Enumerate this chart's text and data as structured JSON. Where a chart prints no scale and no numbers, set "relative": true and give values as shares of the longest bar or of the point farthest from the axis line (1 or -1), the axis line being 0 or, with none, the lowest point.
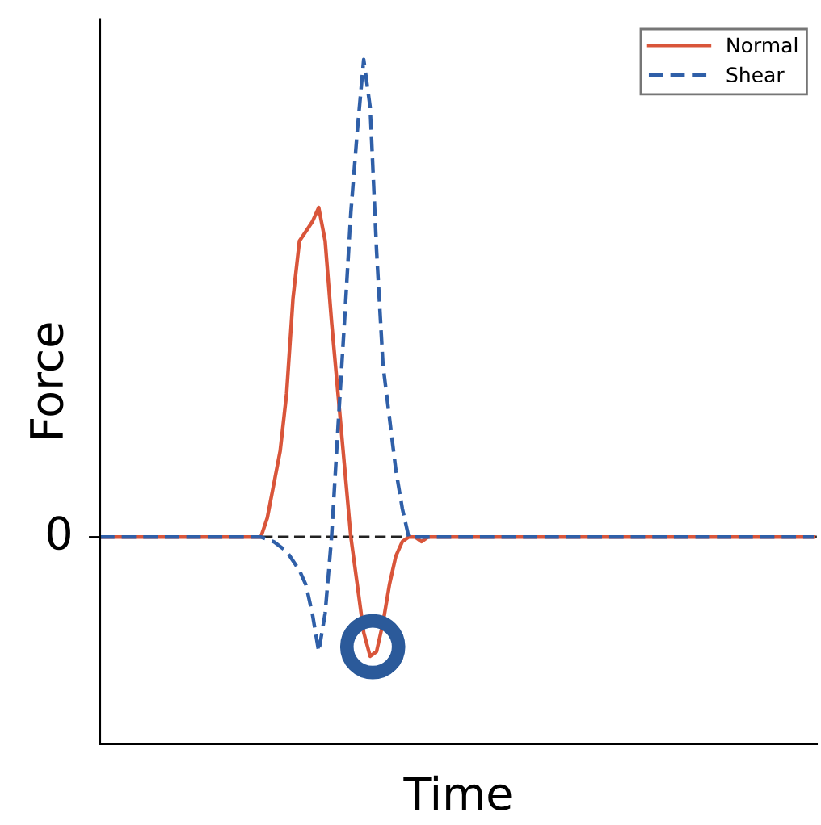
{
  "chart_data": {
    "type": "line",
    "xlabel": "Time",
    "ylabel": "Force",
    "relative": true,
    "tick_labels": "y",
    "ref_lines": [
      {
        "axis": "y",
        "value": 0,
        "label": "0",
        "color": "#222222",
        "line_style": "dashed"
      }
    ],
    "legend": "top right",
    "grid": false,
    "marker": "none",
    "categories": [
      null,
      null,
      null,
      null,
      null,
      null,
      null,
      null,
      null,
      null,
      null,
      null,
      null,
      null,
      null,
      null,
      null,
      null,
      null,
      null,
      null,
      null,
      null,
      null,
      null,
      null,
      null,
      null,
      null,
      null,
      null,
      null,
      null,
      null,
      null,
      null,
      null,
      null,
      null,
      null,
      null,
      null,
      null,
      null,
      null,
      null,
      null,
      null,
      null,
      null,
      null,
      null,
      null,
      null,
      null,
      null,
      null,
      null,
      null,
      null,
      null,
      null,
      null,
      null,
      null,
      null,
      null,
      null,
      null,
      null,
      null,
      null,
      null,
      null,
      null,
      null,
      null,
      null,
      null,
      null,
      null,
      null,
      null,
      null,
      null,
      null,
      null,
      null,
      null,
      null,
      null,
      null,
      null,
      null,
      null,
      null,
      null,
      null,
      null,
      null,
      null,
      null,
      null,
      null,
      null,
      null,
      null,
      null,
      null,
      null,
      null,
      null
    ],
    "series": [
      {
        "name": "Normal",
        "color": "#d9553a",
        "line_style": "solid",
        "values": [
          0,
          0,
          0,
          0,
          0,
          0,
          0,
          0,
          0,
          0,
          0,
          0,
          0,
          0,
          0,
          0,
          0,
          0,
          0,
          0,
          0,
          0,
          0,
          0,
          0,
          0,
          0.04,
          0.11,
          0.18,
          0.3,
          0.5,
          0.62,
          0.64,
          0.66,
          0.69,
          0.62,
          0.45,
          0.3,
          0.15,
          0,
          -0.1,
          -0.2,
          -0.25,
          -0.24,
          -0.18,
          -0.1,
          -0.04,
          -0.01,
          0,
          0,
          -0.01,
          0,
          0,
          0,
          0,
          0,
          0,
          0,
          0,
          0,
          0,
          0,
          0,
          0,
          0,
          0,
          0,
          0,
          0,
          0,
          0,
          0,
          0,
          0,
          0,
          0,
          0,
          0,
          0,
          0,
          0,
          0,
          0,
          0,
          0,
          0,
          0,
          0,
          0,
          0,
          0,
          0,
          0,
          0,
          0,
          0,
          0,
          0,
          0,
          0,
          0,
          0,
          0,
          0,
          0,
          0,
          0,
          0,
          0,
          0,
          0,
          0
        ]
      },
      {
        "name": "Shear",
        "color": "#2f5fa8",
        "line_style": "dashed",
        "values": [
          0,
          0,
          0,
          0,
          0,
          0,
          0,
          0,
          0,
          0,
          0,
          0,
          0,
          0,
          0,
          0,
          0,
          0,
          0,
          0,
          0,
          0,
          0,
          0,
          0,
          0,
          -0.005,
          -0.01,
          -0.02,
          -0.03,
          -0.05,
          -0.07,
          -0.1,
          -0.16,
          -0.24,
          -0.16,
          0,
          0.23,
          0.45,
          0.68,
          0.85,
          1.0,
          0.9,
          0.6,
          0.36,
          0.25,
          0.14,
          0.06,
          0,
          0,
          0,
          0,
          0,
          0,
          0,
          0,
          0,
          0,
          0,
          0,
          0,
          0,
          0,
          0,
          0,
          0,
          0,
          0,
          0,
          0,
          0,
          0,
          0,
          0,
          0,
          0,
          0,
          0,
          0,
          0,
          0,
          0,
          0,
          0,
          0,
          0,
          0,
          0,
          0,
          0,
          0,
          0,
          0,
          0,
          0,
          0,
          0,
          0,
          0,
          0,
          0,
          0,
          0,
          0,
          0,
          0,
          0,
          0,
          0,
          0,
          0,
          0
        ]
      }
    ]
  }
}
